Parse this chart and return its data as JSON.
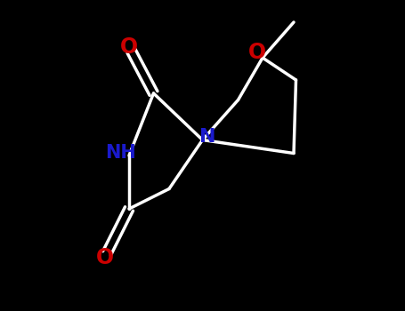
{
  "background_color": "#000000",
  "bond_color": "#ffffff",
  "n_color": "#1a1acd",
  "o_color": "#cc0000",
  "figsize": [
    4.55,
    3.5
  ],
  "dpi": 100,
  "bond_lw": 2.5,
  "font_size": 15,
  "xlim": [
    0,
    9
  ],
  "ylim": [
    0,
    7
  ]
}
